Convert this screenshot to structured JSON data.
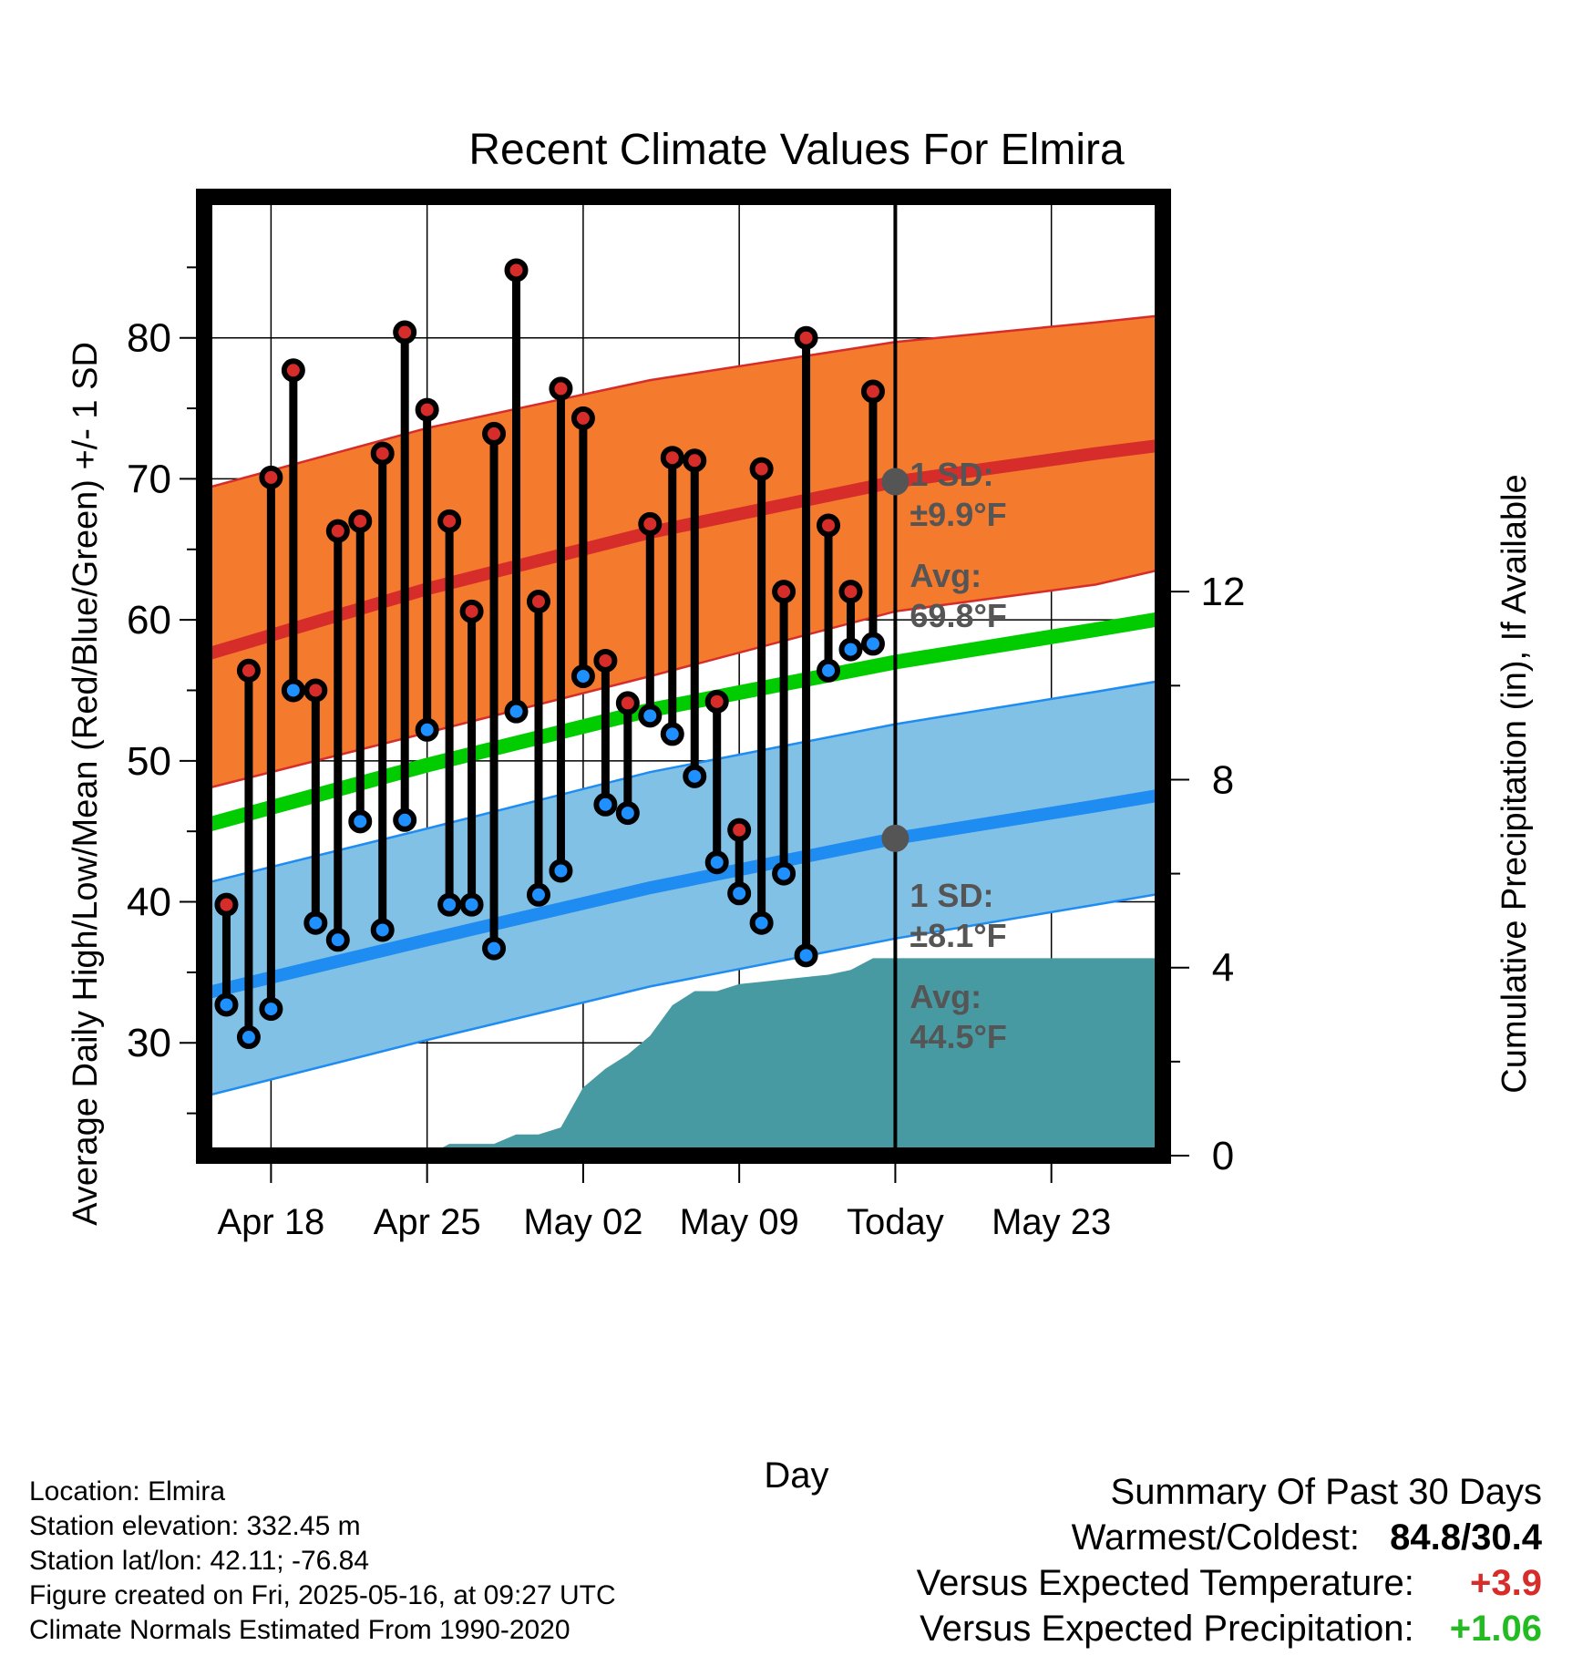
{
  "chart_data": {
    "type": "line",
    "title": "Recent Climate Values For Elmira",
    "xlabel": "Day",
    "ylabel": "Average Daily High/Low/Mean (Red/Blue/Green) +/- 1 SD",
    "y2label": "Cumulative Precipitation (in), If Available",
    "xlim": [
      "2025-04-15",
      "2025-05-28"
    ],
    "ylim": [
      22,
      90
    ],
    "y2lim": [
      0,
      20.4
    ],
    "x_ticks": [
      {
        "date": "2025-04-18",
        "label": "Apr 18"
      },
      {
        "date": "2025-04-25",
        "label": "Apr 25"
      },
      {
        "date": "2025-05-02",
        "label": "May 02"
      },
      {
        "date": "2025-05-09",
        "label": "May 09"
      },
      {
        "date": "2025-05-16",
        "label": "Today"
      },
      {
        "date": "2025-05-23",
        "label": "May 23"
      }
    ],
    "y_ticks": [
      30,
      40,
      50,
      60,
      70,
      80
    ],
    "y2_ticks": [
      0,
      4,
      8,
      12
    ],
    "grid": true,
    "colors": {
      "high_band": "#f47a2e",
      "high_line": "#d62d2a",
      "low_band": "#82c1e6",
      "low_line": "#1e8cf0",
      "mean_line": "#00cc00",
      "precip": "#489aa2",
      "high_dot": "#d62d2a",
      "low_dot": "#1e90ff",
      "marker": "#555555"
    },
    "normals": {
      "dates": [
        "2025-04-15",
        "2025-04-25",
        "2025-05-05",
        "2025-05-16",
        "2025-05-25",
        "2025-05-28"
      ],
      "high_avg": [
        57.5,
        62.2,
        66.2,
        69.8,
        71.8,
        72.4
      ],
      "high_upper": [
        69.3,
        73.6,
        77.0,
        79.7,
        81.1,
        81.6
      ],
      "high_lower": [
        48.0,
        52.0,
        56.0,
        60.6,
        62.5,
        63.6
      ],
      "mean": [
        45.4,
        49.7,
        53.6,
        57.0,
        59.3,
        60.1
      ],
      "low_avg": [
        33.5,
        37.3,
        41.0,
        44.5,
        46.8,
        47.6
      ],
      "low_upper": [
        41.3,
        45.2,
        49.2,
        52.6,
        54.9,
        55.7
      ],
      "low_lower": [
        26.2,
        30.2,
        34.0,
        37.4,
        39.8,
        40.6
      ]
    },
    "series": [
      {
        "name": "High",
        "x": [
          "2025-04-16",
          "2025-04-17",
          "2025-04-18",
          "2025-04-19",
          "2025-04-20",
          "2025-04-21",
          "2025-04-22",
          "2025-04-23",
          "2025-04-24",
          "2025-04-25",
          "2025-04-26",
          "2025-04-27",
          "2025-04-28",
          "2025-04-29",
          "2025-04-30",
          "2025-05-01",
          "2025-05-02",
          "2025-05-03",
          "2025-05-04",
          "2025-05-05",
          "2025-05-06",
          "2025-05-07",
          "2025-05-08",
          "2025-05-09",
          "2025-05-10",
          "2025-05-11",
          "2025-05-12",
          "2025-05-13",
          "2025-05-14",
          "2025-05-15"
        ],
        "values": [
          39.8,
          56.4,
          70.1,
          77.7,
          55.0,
          66.3,
          67.0,
          71.8,
          80.4,
          74.9,
          67.0,
          60.6,
          73.2,
          84.8,
          61.3,
          76.4,
          74.3,
          57.1,
          54.1,
          66.8,
          71.5,
          71.3,
          54.2,
          45.1,
          70.7,
          62.0,
          80.0,
          66.7,
          62.0,
          76.2
        ]
      },
      {
        "name": "Low",
        "x": [
          "2025-04-16",
          "2025-04-17",
          "2025-04-18",
          "2025-04-19",
          "2025-04-20",
          "2025-04-21",
          "2025-04-22",
          "2025-04-23",
          "2025-04-24",
          "2025-04-25",
          "2025-04-26",
          "2025-04-27",
          "2025-04-28",
          "2025-04-29",
          "2025-04-30",
          "2025-05-01",
          "2025-05-02",
          "2025-05-03",
          "2025-05-04",
          "2025-05-05",
          "2025-05-06",
          "2025-05-07",
          "2025-05-08",
          "2025-05-09",
          "2025-05-10",
          "2025-05-11",
          "2025-05-12",
          "2025-05-13",
          "2025-05-14",
          "2025-05-15"
        ],
        "values": [
          32.7,
          30.4,
          32.4,
          55.0,
          38.5,
          37.3,
          45.7,
          38.0,
          45.8,
          52.2,
          39.8,
          39.8,
          36.7,
          53.5,
          40.5,
          42.2,
          56.0,
          46.9,
          46.3,
          53.2,
          51.9,
          48.9,
          42.8,
          40.6,
          38.5,
          42.0,
          36.2,
          56.4,
          57.9,
          58.3
        ]
      },
      {
        "name": "Cumulative Precipitation",
        "x": [
          "2025-04-25",
          "2025-04-26",
          "2025-04-27",
          "2025-04-28",
          "2025-04-29",
          "2025-04-30",
          "2025-05-01",
          "2025-05-02",
          "2025-05-03",
          "2025-05-04",
          "2025-05-05",
          "2025-05-06",
          "2025-05-07",
          "2025-05-08",
          "2025-05-09",
          "2025-05-10",
          "2025-05-11",
          "2025-05-12",
          "2025-05-13",
          "2025-05-14",
          "2025-05-15",
          "2025-05-16",
          "2025-05-28"
        ],
        "values": [
          0,
          0.25,
          0.25,
          0.25,
          0.45,
          0.45,
          0.6,
          1.45,
          1.85,
          2.15,
          2.55,
          3.2,
          3.5,
          3.5,
          3.65,
          3.7,
          3.75,
          3.8,
          3.85,
          3.95,
          4.2,
          4.2,
          4.2
        ]
      }
    ],
    "annotations": {
      "high_sd_label": "1 SD:",
      "high_sd_value": "±9.9°F",
      "high_avg_label": "Avg:",
      "high_avg_value": "69.8°F",
      "high_avg": 69.8,
      "low_sd_label": "1 SD:",
      "low_sd_value": "±8.1°F",
      "low_avg_label": "Avg:",
      "low_avg_value": "44.5°F",
      "low_avg": 44.5,
      "today_date": "2025-05-16",
      "window_label_1": "30",
      "window_label_2": "Days"
    }
  },
  "station_info": {
    "location": "Location: Elmira",
    "elevation": "Station elevation: 332.45 m",
    "latlon": "Station lat/lon: 42.11; -76.84",
    "created": "Figure created on Fri, 2025-05-16, at 09:27 UTC",
    "normals": "Climate Normals Estimated From 1990-2020"
  },
  "summary": {
    "title": "Summary Of Past 30 Days",
    "warmest_coldest_label": "Warmest/Coldest:",
    "warmest_coldest_value": "84.8/30.4",
    "temp_label": "Versus Expected Temperature:",
    "temp_value": "+3.9",
    "temp_color": "#d62d2a",
    "precip_label": "Versus Expected Precipitation:",
    "precip_value": "+1.06",
    "precip_color": "#22bb22"
  }
}
